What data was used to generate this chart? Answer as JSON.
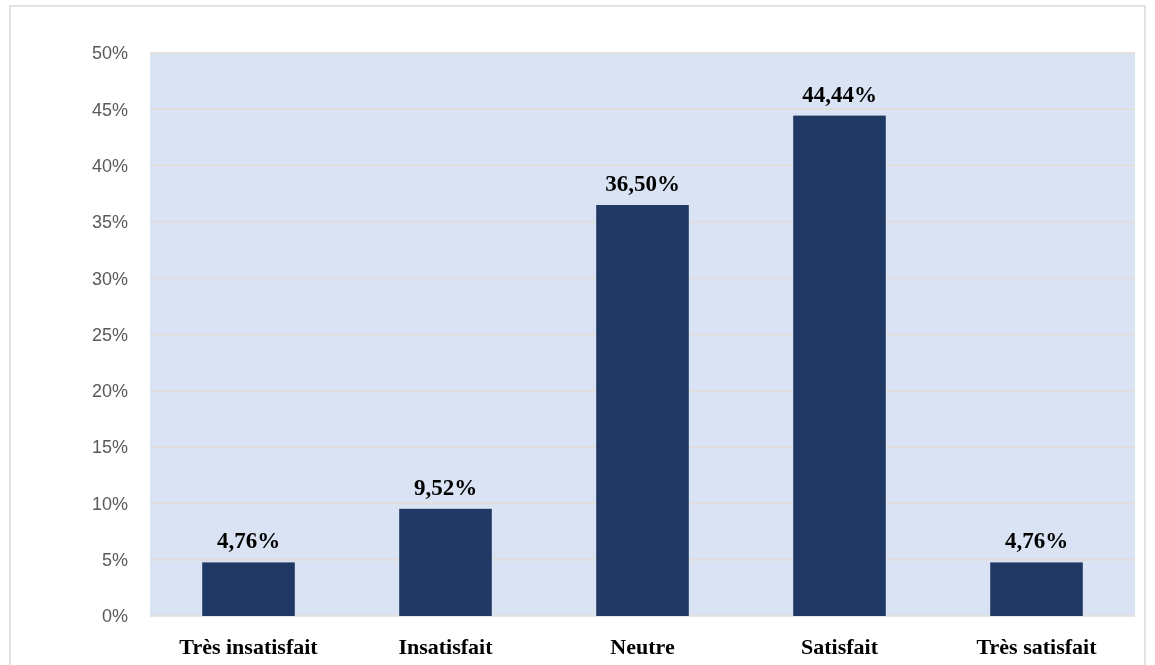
{
  "chart_data": {
    "type": "bar",
    "categories": [
      "Très insatisfait",
      "Insatisfait",
      "Neutre",
      "Satisfait",
      "Très satisfait"
    ],
    "values": [
      4.76,
      9.52,
      36.5,
      44.44,
      4.76
    ],
    "color": "#203864",
    "value_labels": [
      "4,76%",
      "9,52%",
      "36,50%",
      "44,44%",
      "4,76%"
    ],
    "ylim": [
      0,
      50
    ],
    "yticks": [
      {
        "value": 0,
        "label": "0%"
      },
      {
        "value": 5,
        "label": "5%"
      },
      {
        "value": 10,
        "label": "10%"
      },
      {
        "value": 15,
        "label": "15%"
      },
      {
        "value": 20,
        "label": "20%"
      },
      {
        "value": 25,
        "label": "25%"
      },
      {
        "value": 30,
        "label": "30%"
      },
      {
        "value": 35,
        "label": "35%"
      },
      {
        "value": 40,
        "label": "40%"
      },
      {
        "value": 45,
        "label": "45%"
      },
      {
        "value": 50,
        "label": "50%"
      }
    ],
    "grid": "y"
  }
}
